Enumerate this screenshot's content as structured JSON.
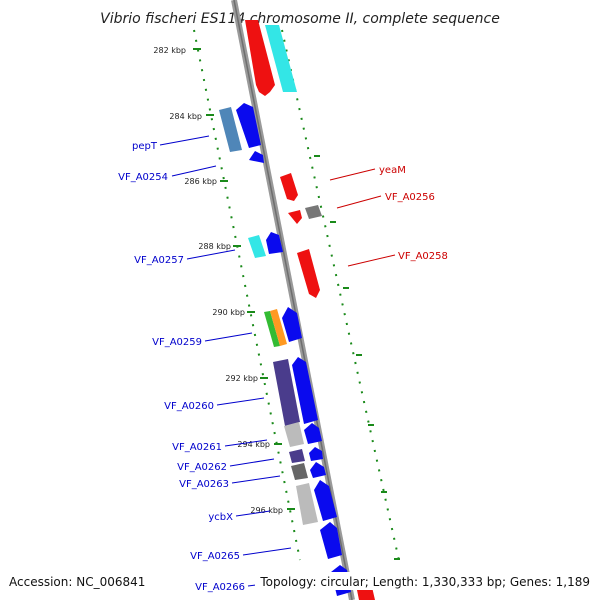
{
  "title": "Vibrio fischeri ES114 chromosome II, complete sequence",
  "footer": {
    "accession": "Accession: NC_006841",
    "summary": "Topology: circular; Length: 1,330,333 bp; Genes: 1,189"
  },
  "ruler_ticks": [
    "282 kbp",
    "284 kbp",
    "286 kbp",
    "288 kbp",
    "290 kbp",
    "292 kbp",
    "294 kbp",
    "296 kbp"
  ],
  "gene_labels": [
    {
      "text": "pepT",
      "color": "#0000cc"
    },
    {
      "text": "VF_A0254",
      "color": "#0000cc"
    },
    {
      "text": "yeaM",
      "color": "#cc0000"
    },
    {
      "text": "VF_A0256",
      "color": "#cc0000"
    },
    {
      "text": "VF_A0257",
      "color": "#0000cc"
    },
    {
      "text": "VF_A0258",
      "color": "#cc0000"
    },
    {
      "text": "VF_A0259",
      "color": "#0000cc"
    },
    {
      "text": "VF_A0260",
      "color": "#0000cc"
    },
    {
      "text": "VF_A0261",
      "color": "#0000cc"
    },
    {
      "text": "VF_A0262",
      "color": "#0000cc"
    },
    {
      "text": "VF_A0263",
      "color": "#0000cc"
    },
    {
      "text": "ycbX",
      "color": "#0000cc"
    },
    {
      "text": "VF_A0265",
      "color": "#0000cc"
    },
    {
      "text": "VF_A0266",
      "color": "#0000cc"
    }
  ],
  "colors": {
    "forward_cds": "#0000ff",
    "reverse_cds": "#ff0000",
    "backbone": "#888888",
    "gc_track": "#1a8a1a",
    "cog_cyan": "#33e6e6",
    "cog_steel": "#4f86b8",
    "cog_purple": "#4a3c8c",
    "cog_grey": "#bbbbbb",
    "cog_dark": "#666666",
    "cog_green": "#33bb33",
    "cog_orange": "#ff9922"
  }
}
